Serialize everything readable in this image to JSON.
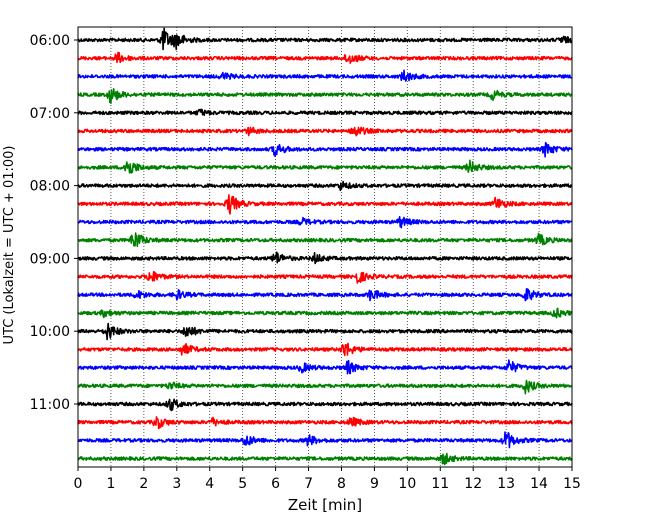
{
  "chart_data": {
    "type": "line",
    "title": "",
    "xlabel": "Zeit  [min]",
    "ylabel": "UTC (Lokalzeit = UTC + 01:00)",
    "xlim": [
      0,
      15
    ],
    "x_ticks": [
      0,
      1,
      2,
      3,
      4,
      5,
      6,
      7,
      8,
      9,
      10,
      11,
      12,
      13,
      14,
      15
    ],
    "x_tick_labels": [
      "0",
      "1",
      "2",
      "3",
      "4",
      "5",
      "6",
      "7",
      "8",
      "9",
      "10",
      "11",
      "12",
      "13",
      "14",
      "15"
    ],
    "y_tick_labels": [
      "06:00",
      "07:00",
      "08:00",
      "09:00",
      "10:00",
      "11:00"
    ],
    "y_tick_rows": [
      0,
      4,
      8,
      12,
      16,
      20
    ],
    "grid": "vertical dotted lines at each minute",
    "legend": "none",
    "row_minutes": 15,
    "row_colors": [
      "#000000",
      "#ff0000",
      "#0000ff",
      "#008000"
    ],
    "traces": [
      {
        "start": "06:00",
        "color": "#000000",
        "events": [
          {
            "t": 2.6,
            "amp": 1.0
          },
          {
            "t": 3.0,
            "amp": 0.6
          },
          {
            "t": 14.7,
            "amp": 0.3
          }
        ]
      },
      {
        "start": "06:15",
        "color": "#ff0000",
        "events": [
          {
            "t": 1.2,
            "amp": 0.45
          },
          {
            "t": 8.2,
            "amp": 0.55
          }
        ]
      },
      {
        "start": "06:30",
        "color": "#0000ff",
        "events": [
          {
            "t": 4.4,
            "amp": 0.3
          },
          {
            "t": 9.9,
            "amp": 0.5
          }
        ]
      },
      {
        "start": "06:45",
        "color": "#008000",
        "events": [
          {
            "t": 1.0,
            "amp": 0.7
          },
          {
            "t": 12.6,
            "amp": 0.4
          }
        ]
      },
      {
        "start": "07:00",
        "color": "#000000",
        "events": [
          {
            "t": 3.7,
            "amp": 0.25
          }
        ]
      },
      {
        "start": "07:15",
        "color": "#ff0000",
        "events": [
          {
            "t": 5.2,
            "amp": 0.3
          },
          {
            "t": 8.4,
            "amp": 0.55
          }
        ]
      },
      {
        "start": "07:30",
        "color": "#0000ff",
        "events": [
          {
            "t": 6.0,
            "amp": 0.55
          },
          {
            "t": 14.2,
            "amp": 0.6
          }
        ]
      },
      {
        "start": "07:45",
        "color": "#008000",
        "events": [
          {
            "t": 1.5,
            "amp": 0.85
          },
          {
            "t": 11.9,
            "amp": 0.55
          }
        ]
      },
      {
        "start": "08:00",
        "color": "#000000",
        "events": [
          {
            "t": 8.0,
            "amp": 0.35
          }
        ]
      },
      {
        "start": "08:15",
        "color": "#ff0000",
        "events": [
          {
            "t": 4.6,
            "amp": 0.9
          },
          {
            "t": 12.7,
            "amp": 0.55
          }
        ]
      },
      {
        "start": "08:30",
        "color": "#0000ff",
        "events": [
          {
            "t": 6.8,
            "amp": 0.3
          },
          {
            "t": 9.8,
            "amp": 0.45
          }
        ]
      },
      {
        "start": "08:45",
        "color": "#008000",
        "events": [
          {
            "t": 1.7,
            "amp": 0.85
          },
          {
            "t": 14.0,
            "amp": 0.5
          }
        ]
      },
      {
        "start": "09:00",
        "color": "#000000",
        "events": [
          {
            "t": 6.0,
            "amp": 0.55
          },
          {
            "t": 7.2,
            "amp": 0.4
          }
        ]
      },
      {
        "start": "09:15",
        "color": "#ff0000",
        "events": [
          {
            "t": 2.2,
            "amp": 0.55
          },
          {
            "t": 8.5,
            "amp": 0.55
          }
        ]
      },
      {
        "start": "09:30",
        "color": "#0000ff",
        "events": [
          {
            "t": 1.8,
            "amp": 0.35
          },
          {
            "t": 3.0,
            "amp": 0.4
          },
          {
            "t": 8.9,
            "amp": 0.5
          },
          {
            "t": 13.6,
            "amp": 0.6
          }
        ]
      },
      {
        "start": "09:45",
        "color": "#008000",
        "events": [
          {
            "t": 0.8,
            "amp": 0.3
          },
          {
            "t": 14.5,
            "amp": 0.4
          }
        ]
      },
      {
        "start": "10:00",
        "color": "#000000",
        "events": [
          {
            "t": 0.9,
            "amp": 0.75
          },
          {
            "t": 3.3,
            "amp": 0.6
          }
        ]
      },
      {
        "start": "10:15",
        "color": "#ff0000",
        "events": [
          {
            "t": 3.2,
            "amp": 0.55
          },
          {
            "t": 8.1,
            "amp": 0.7
          }
        ]
      },
      {
        "start": "10:30",
        "color": "#0000ff",
        "events": [
          {
            "t": 6.8,
            "amp": 0.4
          },
          {
            "t": 8.2,
            "amp": 0.55
          },
          {
            "t": 13.1,
            "amp": 0.6
          }
        ]
      },
      {
        "start": "10:45",
        "color": "#008000",
        "events": [
          {
            "t": 2.8,
            "amp": 0.3
          },
          {
            "t": 13.6,
            "amp": 0.6
          }
        ]
      },
      {
        "start": "11:00",
        "color": "#000000",
        "events": [
          {
            "t": 2.8,
            "amp": 0.55
          }
        ]
      },
      {
        "start": "11:15",
        "color": "#ff0000",
        "events": [
          {
            "t": 2.4,
            "amp": 0.55
          },
          {
            "t": 4.1,
            "amp": 0.3
          },
          {
            "t": 8.3,
            "amp": 0.4
          }
        ]
      },
      {
        "start": "11:30",
        "color": "#0000ff",
        "events": [
          {
            "t": 5.1,
            "amp": 0.5
          },
          {
            "t": 7.0,
            "amp": 0.45
          },
          {
            "t": 13.0,
            "amp": 0.85
          }
        ]
      },
      {
        "start": "11:45",
        "color": "#008000",
        "events": [
          {
            "t": 11.1,
            "amp": 0.5
          }
        ]
      }
    ]
  }
}
